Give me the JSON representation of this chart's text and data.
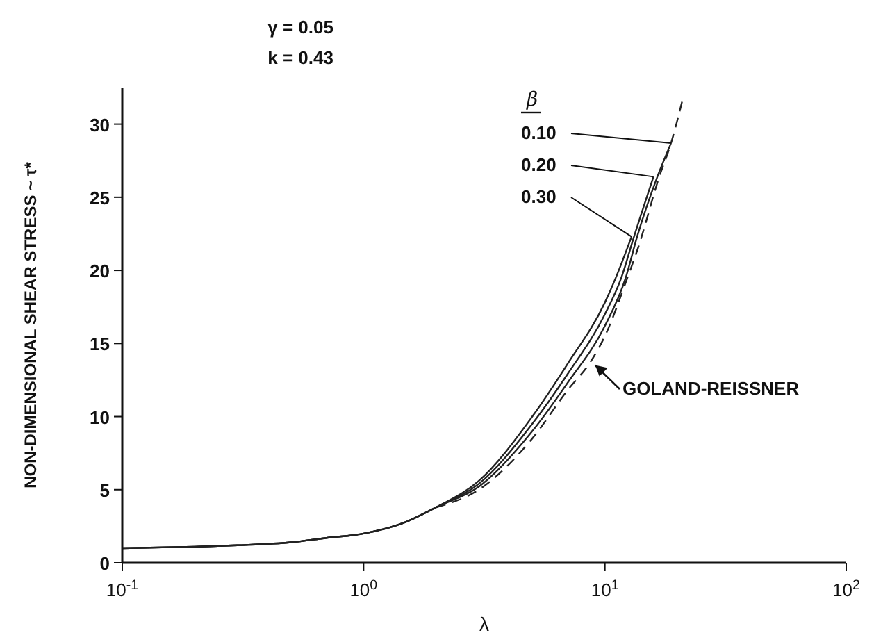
{
  "chart_data": {
    "type": "line",
    "xlabel": "λ",
    "ylabel": "NON-DIMENSIONAL SHEAR STRESS ~ τ*",
    "legend_title": "β",
    "annotations": [
      "γ = 0.05",
      "k = 0.43"
    ],
    "log": "x",
    "xlim": [
      0.1,
      100
    ],
    "xticks": [
      {
        "value": 0.1,
        "label": "10$^{-1}$"
      },
      {
        "value": 1,
        "label": "10$^{0}$"
      },
      {
        "value": 10,
        "label": "10$^{1}$"
      },
      {
        "value": 100,
        "label": "10$^{2}$"
      }
    ],
    "ylim": [
      0,
      32.5
    ],
    "yticks": [
      0,
      5,
      10,
      15,
      20,
      25,
      30
    ],
    "marker": "none",
    "series": [
      {
        "name": "0.10",
        "color": "#222222",
        "line_style": "solid",
        "x": [
          0.1,
          0.2,
          0.3,
          0.5,
          0.7,
          1,
          1.5,
          2,
          3,
          5,
          7,
          10,
          12.2,
          13.6,
          16.5,
          18.8
        ],
        "values": [
          1.0,
          1.1,
          1.2,
          1.4,
          1.7,
          2.0,
          2.8,
          3.8,
          5.2,
          9.0,
          12.3,
          16.2,
          19.5,
          22.3,
          26.4,
          28.7
        ]
      },
      {
        "name": "0.20",
        "color": "#222222",
        "line_style": "solid",
        "x": [
          0.1,
          0.2,
          0.3,
          0.5,
          0.7,
          1,
          1.5,
          2,
          3,
          5,
          7,
          10,
          11.7,
          13.2,
          15.9
        ],
        "values": [
          1.0,
          1.1,
          1.2,
          1.4,
          1.7,
          2.0,
          2.8,
          3.8,
          5.4,
          9.5,
          12.9,
          17.0,
          19.5,
          22.3,
          26.4
        ]
      },
      {
        "name": "0.30",
        "color": "#222222",
        "line_style": "solid",
        "x": [
          0.1,
          0.2,
          0.3,
          0.5,
          0.7,
          1,
          1.5,
          2,
          3,
          5,
          7,
          10,
          11.1,
          12.9
        ],
        "values": [
          1.0,
          1.1,
          1.2,
          1.4,
          1.7,
          2.0,
          2.8,
          3.8,
          5.6,
          10.0,
          13.6,
          17.8,
          19.5,
          22.3
        ]
      },
      {
        "name": "GOLAND-REISSNER",
        "color": "#222222",
        "line_style": "dashed",
        "x": [
          2,
          3,
          5,
          7,
          8.76,
          10,
          12.4,
          13.7,
          16.8,
          18.8,
          21
        ],
        "values": [
          3.8,
          5.0,
          8.5,
          11.8,
          13.8,
          15.5,
          19.5,
          21.5,
          26.4,
          28.7,
          31.7
        ]
      }
    ]
  }
}
